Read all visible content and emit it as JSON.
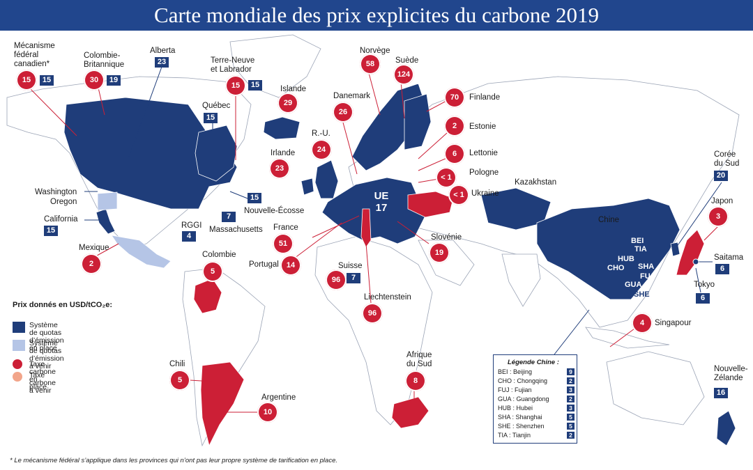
{
  "title": "Carte mondiale des prix explicites du carbone 2019",
  "colors": {
    "title_bar": "#21468d",
    "ets_in_place": "#1f3d7a",
    "ets_planned": "#b5c5e6",
    "tax_in_place": "#cc1f36",
    "tax_planned": "#f2a58a",
    "land": "#ffffff",
    "borders": "#9aa3b5"
  },
  "labels": {
    "mecanisme": "Mécanisme\nfédéral\ncanadien*",
    "colombie_brit": "Colombie-\nBritannique",
    "alberta": "Alberta",
    "terre_neuve": "Terre-Neuve\net Labrador",
    "quebec": "Québec",
    "washington": "Washington",
    "oregon": "Oregon",
    "california": "California",
    "nouvelle_ecosse": "Nouvelle-Écosse",
    "rggi": "RGGI",
    "massachusetts": "Massachusetts",
    "mexique": "Mexique",
    "colombie": "Colombie",
    "chili": "Chili",
    "argentine": "Argentine",
    "islande": "Islande",
    "danemark": "Danemark",
    "norvege": "Norvège",
    "suede": "Suède",
    "finlande": "Finlande",
    "estonie": "Estonie",
    "lettonie": "Lettonie",
    "pologne": "Pologne",
    "ukraine": "Ukraine",
    "ru": "R.-U.",
    "irlande": "Irlande",
    "france": "France",
    "portugal": "Portugal",
    "suisse": "Suisse",
    "liechtenstein": "Liechtenstein",
    "slovenie": "Slovénie",
    "afrique_sud": "Afrique\ndu Sud",
    "kazakhstan": "Kazakhstan",
    "chine": "Chine",
    "coree": "Corée\ndu Sud",
    "japon": "Japon",
    "saitama": "Saitama",
    "tokyo": "Tokyo",
    "singapour": "Singapour",
    "nz": "Nouvelle-\nZélande"
  },
  "values": {
    "mecanisme_tax": "15",
    "mecanisme_ets": "15",
    "cb_tax": "30",
    "cb_ets": "19",
    "alberta_ets": "23",
    "tn_tax": "15",
    "tn_ets": "15",
    "quebec_ets": "15",
    "california_ets": "15",
    "ne_ets": "15",
    "mass_ets": "7",
    "rggi_ets": "4",
    "mexique_tax": "2",
    "colombie_tax": "5",
    "chili_tax": "5",
    "argentine_tax": "10",
    "islande_tax": "29",
    "danemark_tax": "26",
    "norvege_tax": "58",
    "suede_tax": "124",
    "finlande_tax": "70",
    "estonie_tax": "2",
    "lettonie_tax": "6",
    "pologne_tax": "< 1",
    "ukraine_tax": "< 1",
    "ru_tax": "24",
    "irlande_tax": "23",
    "france_tax": "51",
    "portugal_tax": "14",
    "suisse_tax": "96",
    "suisse_ets": "7",
    "liechtenstein_tax": "96",
    "slovenie_tax": "19",
    "afrique_sud_tax": "8",
    "coree_ets": "20",
    "japon_tax": "3",
    "saitama_ets": "6",
    "tokyo_ets": "6",
    "singapour_tax": "4",
    "nz_ets": "16",
    "ue_label": "UE",
    "ue_value": "17"
  },
  "china_codes": [
    "BEI",
    "TIA",
    "HUB",
    "CHO",
    "SHA",
    "FUJ",
    "GUA",
    "SHE"
  ],
  "legend": {
    "title": "Prix donnés en USD/tCO₂e:",
    "items": [
      {
        "label": "Système de quotas\nd’émission en place"
      },
      {
        "label": "Système de quotas\nd’émission à venir"
      },
      {
        "label": "Taxe carbone en place"
      },
      {
        "label": "Taxe carbone\nà venir"
      }
    ]
  },
  "china_legend": {
    "title": "Légende Chine :",
    "rows": [
      {
        "name": "BEI : Beijing",
        "value": "9"
      },
      {
        "name": "CHO : Chongqing",
        "value": "2"
      },
      {
        "name": "FUJ : Fujian",
        "value": "3"
      },
      {
        "name": "GUA : Guangdong",
        "value": "2"
      },
      {
        "name": "HUB : Hubei",
        "value": "3"
      },
      {
        "name": "SHA : Shanghai",
        "value": "5"
      },
      {
        "name": "SHE : Shenzhen",
        "value": "5"
      },
      {
        "name": "TIA : Tianjin",
        "value": "2"
      }
    ]
  },
  "footnote": "* Le mécanisme fédéral s’applique dans les provinces qui n’ont pas leur propre système de tarification en place."
}
